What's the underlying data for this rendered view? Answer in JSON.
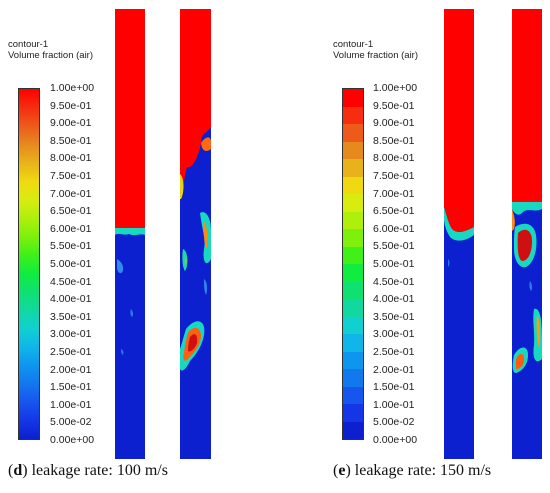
{
  "legend": {
    "title_line1": "contour-1",
    "title_line2": "Volume fraction (air)",
    "ticks": [
      "1.00e+00",
      "9.50e-01",
      "9.00e-01",
      "8.50e-01",
      "8.00e-01",
      "7.50e-01",
      "7.00e-01",
      "6.50e-01",
      "6.00e-01",
      "5.50e-01",
      "5.00e-01",
      "4.50e-01",
      "4.00e-01",
      "3.50e-01",
      "3.00e-01",
      "2.50e-01",
      "2.00e-01",
      "1.50e-01",
      "1.00e-01",
      "5.00e-02",
      "0.00e+00"
    ],
    "colors": [
      "#ff0000",
      "#f62d0f",
      "#ee5a1a",
      "#e68a1e",
      "#e8b21a",
      "#f0d910",
      "#d8ec10",
      "#aef00c",
      "#7ff00c",
      "#40f018",
      "#10ec40",
      "#10e070",
      "#12d8a0",
      "#10d0d0",
      "#10b6e8",
      "#0e96ee",
      "#1278ee",
      "#1655ee",
      "#1436e6",
      "#0c20cf"
    ]
  },
  "panel_d": {
    "caption_letter": "d",
    "caption_text": " leakage rate: 100 m/s"
  },
  "panel_e": {
    "caption_letter": "e",
    "caption_text": " leakage rate: 150 m/s"
  },
  "colors": {
    "air": "#ff0000",
    "water": "#0c20cf",
    "interface": "#18d8c0"
  }
}
